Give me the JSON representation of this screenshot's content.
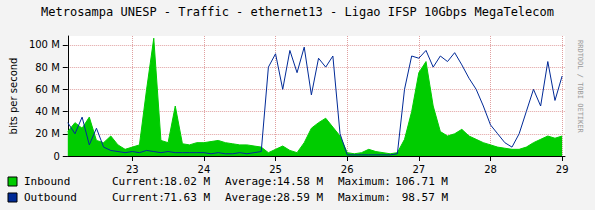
{
  "chart_data": {
    "type": "line",
    "title": "Metrosampa UNESP - Traffic - ethernet13 - Ligao IFSP 10Gbps MegaTelecom",
    "y_label": "bits per second",
    "side_note": "RRDTOOL / TOBI OETIKER",
    "x": [
      22.1,
      22.2,
      22.3,
      22.4,
      22.5,
      22.6,
      22.7,
      22.8,
      22.9,
      23.0,
      23.1,
      23.2,
      23.3,
      23.4,
      23.5,
      23.6,
      23.7,
      23.8,
      23.9,
      24.0,
      24.1,
      24.2,
      24.3,
      24.4,
      24.5,
      24.6,
      24.7,
      24.8,
      24.9,
      25.0,
      25.1,
      25.2,
      25.3,
      25.4,
      25.5,
      25.6,
      25.7,
      25.8,
      25.9,
      26.0,
      26.1,
      26.2,
      26.3,
      26.4,
      26.5,
      26.6,
      26.7,
      26.8,
      26.9,
      27.0,
      27.1,
      27.2,
      27.3,
      27.4,
      27.5,
      27.6,
      27.7,
      27.8,
      27.9,
      28.0,
      28.1,
      28.2,
      28.3,
      28.4,
      28.5,
      28.6,
      28.7,
      28.8,
      28.9,
      29.0
    ],
    "xlim": [
      22.1,
      29.04
    ],
    "xticks": [
      23,
      24,
      25,
      26,
      27,
      28,
      29
    ],
    "ylim": [
      0,
      108
    ],
    "yticks": [
      {
        "value": 0,
        "label": "0"
      },
      {
        "value": 20,
        "label": "20 M"
      },
      {
        "value": 40,
        "label": "40 M"
      },
      {
        "value": 60,
        "label": "60 M"
      },
      {
        "value": 80,
        "label": "80 M"
      },
      {
        "value": 100,
        "label": "100 M"
      }
    ],
    "grid": true,
    "legend": "bottom",
    "stat_labels": [
      "Current:",
      "Average:",
      "Maximum:"
    ],
    "series": [
      {
        "name": "Inbound",
        "type": "area",
        "color": "#00cc00",
        "values": [
          22,
          30,
          25,
          35,
          14,
          12,
          18,
          10,
          6,
          8,
          10,
          60,
          106,
          14,
          12,
          45,
          11,
          10,
          12,
          12,
          13,
          14,
          12,
          11,
          10,
          10,
          9,
          8,
          3,
          6,
          9,
          5,
          3,
          12,
          25,
          30,
          34,
          26,
          18,
          3,
          2,
          3,
          6,
          4,
          3,
          2,
          3,
          15,
          40,
          75,
          85,
          45,
          22,
          18,
          20,
          24,
          18,
          15,
          12,
          10,
          8,
          7,
          6,
          6,
          8,
          12,
          15,
          18,
          16,
          18
        ],
        "stats": [
          {
            "value": 18.02,
            "label": "18.02 M"
          },
          {
            "value": 14.58,
            "label": "14.58 M"
          },
          {
            "value": 106.71,
            "label": "106.71 M"
          }
        ]
      },
      {
        "name": "Outbound",
        "type": "line",
        "color": "#002a97",
        "values": [
          30,
          20,
          35,
          10,
          25,
          8,
          5,
          4,
          3,
          4,
          3,
          5,
          4,
          3,
          4,
          3,
          3,
          3,
          3,
          3,
          2,
          3,
          2,
          2,
          3,
          2,
          3,
          4,
          80,
          92,
          60,
          95,
          75,
          98,
          55,
          88,
          80,
          90,
          20,
          1,
          1,
          1,
          1,
          1,
          1,
          1,
          2,
          60,
          90,
          88,
          95,
          80,
          90,
          85,
          93,
          82,
          70,
          60,
          45,
          28,
          20,
          12,
          8,
          20,
          40,
          60,
          45,
          85,
          50,
          72
        ],
        "stats": [
          {
            "value": 71.63,
            "label": "71.63 M"
          },
          {
            "value": 28.59,
            "label": "28.59 M"
          },
          {
            "value": 98.57,
            "label": "98.57 M"
          }
        ]
      }
    ]
  }
}
